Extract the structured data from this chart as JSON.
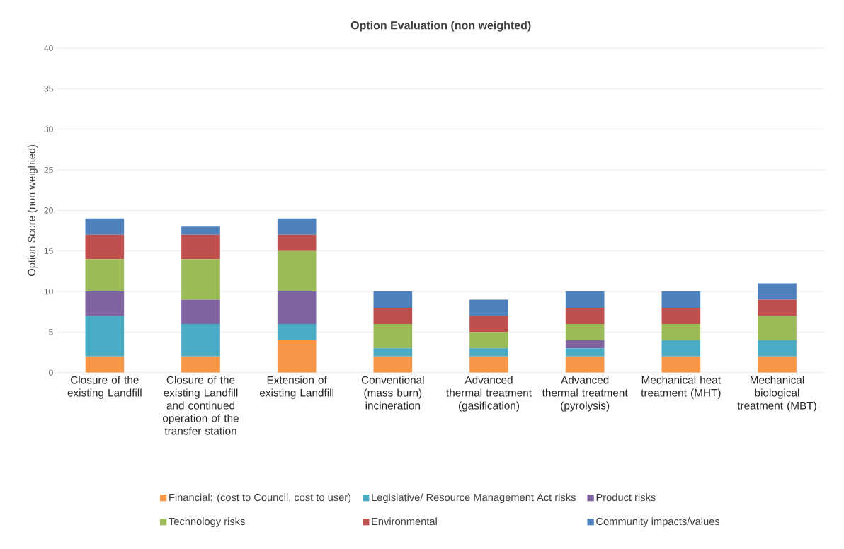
{
  "chart_data": {
    "type": "bar",
    "title": "Option Evaluation (non weighted)",
    "ylabel": "Option Score (non weighted)",
    "categories": [
      "Closure of the existing Landfill",
      "Closure of the existing Landfill and continued operation of the transfer station",
      "Extension of existing Landfill",
      "Conventional (mass burn) incineration",
      "Advanced thermal treatment (gasification)",
      "Advanced thermal treatment (pyrolysis)",
      "Mechanical heat treatment (MHT)",
      "Mechanical biological treatment (MBT)"
    ],
    "series": [
      {
        "name": "Financial: (cost to Council, cost to user)",
        "color": "#f79646",
        "values": [
          2,
          2,
          4,
          2,
          2,
          2,
          2,
          2
        ]
      },
      {
        "name": "Legislative/ Resource Management Act risks",
        "color": "#4bacc6",
        "values": [
          5,
          4,
          2,
          1,
          1,
          1,
          2,
          2
        ]
      },
      {
        "name": "Product risks",
        "color": "#8064a2",
        "values": [
          3,
          3,
          4,
          0,
          0,
          1,
          0,
          0
        ]
      },
      {
        "name": "Technology risks",
        "color": "#9bbb59",
        "values": [
          4,
          5,
          5,
          3,
          2,
          2,
          2,
          3
        ]
      },
      {
        "name": "Environmental",
        "color": "#c0504d",
        "values": [
          3,
          3,
          2,
          2,
          2,
          2,
          2,
          2
        ]
      },
      {
        "name": "Community impacts/values",
        "color": "#4f81bd",
        "values": [
          2,
          1,
          2,
          2,
          2,
          2,
          2,
          2
        ]
      }
    ],
    "stacked": true,
    "ylim": [
      0,
      40
    ],
    "yticks": [
      0,
      5,
      10,
      15,
      20,
      25,
      30,
      35,
      40
    ],
    "grid": "y",
    "legend": "bottom"
  }
}
